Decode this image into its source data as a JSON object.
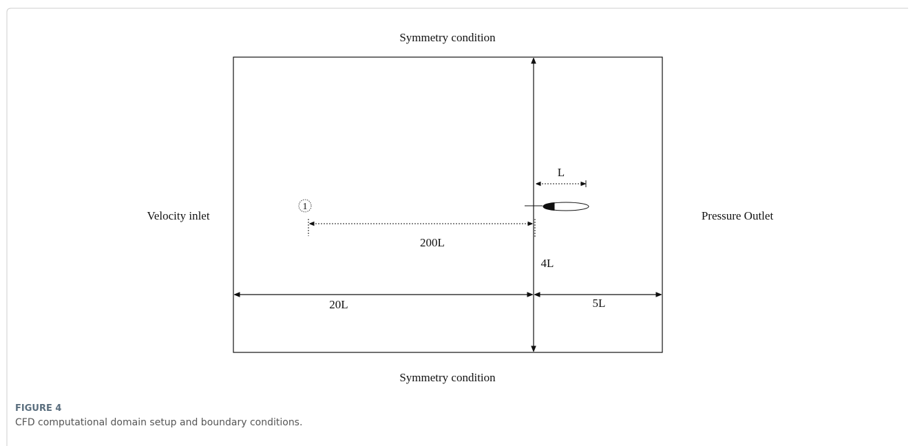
{
  "diagram": {
    "top_boundary": "Symmetry condition",
    "bottom_boundary": "Symmetry condition",
    "left_boundary": "Velocity inlet",
    "right_boundary": "Pressure Outlet",
    "chord_label": "L",
    "probe_label": "1",
    "probe_distance": "200L",
    "lower_height": "4L",
    "upstream_length": "20L",
    "downstream_length": "5L"
  },
  "caption": {
    "label": "FIGURE 4",
    "text": "CFD computational domain setup and boundary conditions."
  }
}
